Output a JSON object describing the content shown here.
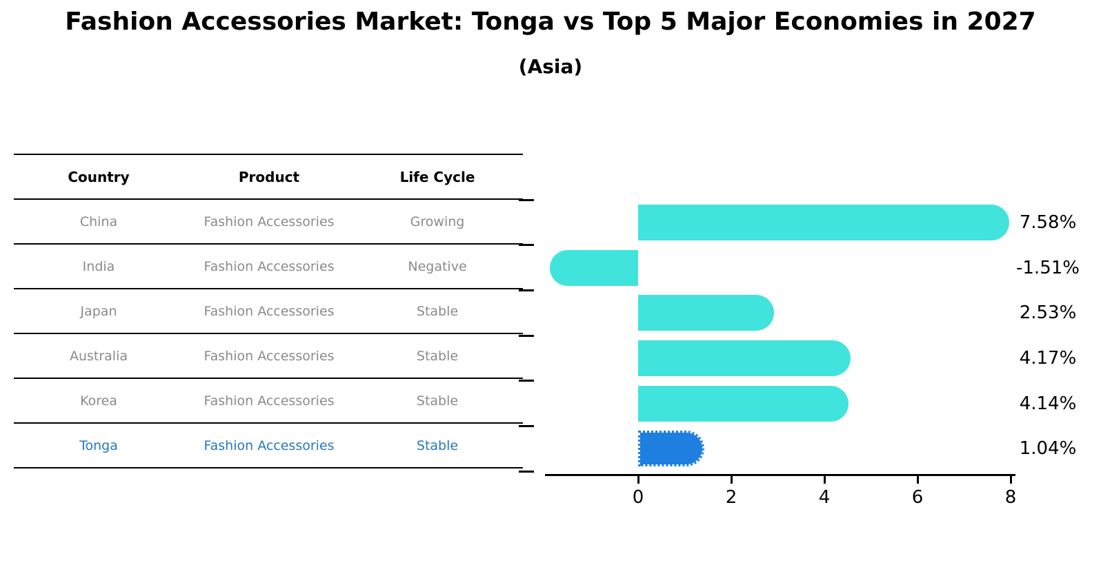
{
  "header": {
    "title": "Fashion Accessories Market: Tonga vs Top 5 Major Economies in 2027",
    "subtitle": "(Asia)"
  },
  "table": {
    "headers": [
      "Country",
      "Product",
      "Life Cycle"
    ],
    "rows": [
      {
        "country": "China",
        "product": "Fashion Accessories",
        "life_cycle": "Growing"
      },
      {
        "country": "India",
        "product": "Fashion Accessories",
        "life_cycle": "Negative"
      },
      {
        "country": "Japan",
        "product": "Fashion Accessories",
        "life_cycle": "Stable"
      },
      {
        "country": "Australia",
        "product": "Fashion Accessories",
        "life_cycle": "Stable"
      },
      {
        "country": "Korea",
        "product": "Fashion Accessories",
        "life_cycle": "Stable"
      },
      {
        "country": "Tonga",
        "product": "Fashion Accessories",
        "life_cycle": "Stable"
      }
    ],
    "highlight_row": 5
  },
  "chart_data": {
    "type": "bar",
    "orientation": "horizontal",
    "title": "Fashion Accessories Market: Tonga vs Top 5 Major Economies in 2027",
    "subtitle": "(Asia)",
    "categories": [
      "China",
      "India",
      "Japan",
      "Australia",
      "Korea",
      "Tonga"
    ],
    "values": [
      7.58,
      -1.51,
      2.53,
      4.17,
      4.14,
      1.04
    ],
    "value_labels": [
      "7.58%",
      "-1.51%",
      "2.53%",
      "4.17%",
      "4.14%",
      "1.04%"
    ],
    "x_ticks": [
      0,
      2,
      4,
      6,
      8
    ],
    "xlim": [
      -2,
      8.1
    ],
    "grid": false,
    "legend": "none",
    "bar_color": "#40E4DC",
    "highlight_bar_color": "#1E7FE0",
    "highlight_index": 5,
    "highlight_bar_style": "dotted-outline"
  },
  "colors": {
    "bar": "#40E4DC",
    "highlight_bar": "#1E7FE0",
    "table_text": "#8a8a8a",
    "highlight_text": "#2478BE",
    "axis": "#000000"
  }
}
